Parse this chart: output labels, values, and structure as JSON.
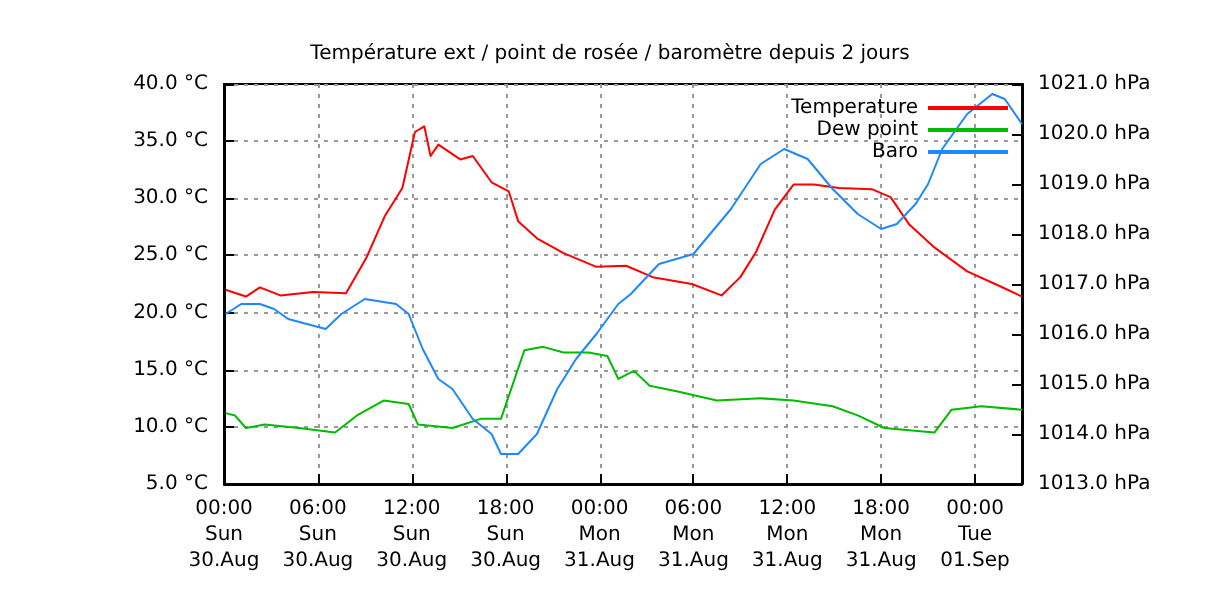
{
  "chart_data": {
    "type": "line",
    "title": "Température ext / point de rosée / baromètre depuis 2 jours",
    "xlim": [
      "--08-30T00:00",
      "--09-01T03:00"
    ],
    "xticks": [
      {
        "value": "--08-30T00:00",
        "label": "00:00\nSun\n30.Aug"
      },
      {
        "value": "--08-30T06:00",
        "label": "06:00\nSun\n30.Aug"
      },
      {
        "value": "--08-30T12:00",
        "label": "12:00\nSun\n30.Aug"
      },
      {
        "value": "--08-30T18:00",
        "label": "18:00\nSun\n30.Aug"
      },
      {
        "value": "--08-31T00:00",
        "label": "00:00\nMon\n31.Aug"
      },
      {
        "value": "--08-31T06:00",
        "label": "06:00\nMon\n31.Aug"
      },
      {
        "value": "--08-31T12:00",
        "label": "12:00\nMon\n31.Aug"
      },
      {
        "value": "--08-31T18:00",
        "label": "18:00\nMon\n31.Aug"
      },
      {
        "value": "--09-01T00:00",
        "label": "00:00\nTue\n01.Sep"
      }
    ],
    "ylim": [
      5,
      40
    ],
    "yticks": [
      {
        "value": 5,
        "label": "5.0 °C"
      },
      {
        "value": 10,
        "label": "10.0 °C"
      },
      {
        "value": 15,
        "label": "15.0 °C"
      },
      {
        "value": 20,
        "label": "20.0 °C"
      },
      {
        "value": 25,
        "label": "25.0 °C"
      },
      {
        "value": 30,
        "label": "30.0 °C"
      },
      {
        "value": 35,
        "label": "35.0 °C"
      },
      {
        "value": 40,
        "label": "40.0 °C"
      }
    ],
    "y2lim": [
      1013,
      1021
    ],
    "y2ticks": [
      {
        "value": 1013,
        "label": "1013.0 hPa"
      },
      {
        "value": 1014,
        "label": "1014.0 hPa"
      },
      {
        "value": 1015,
        "label": "1015.0 hPa"
      },
      {
        "value": 1016,
        "label": "1016.0 hPa"
      },
      {
        "value": 1017,
        "label": "1017.0 hPa"
      },
      {
        "value": 1018,
        "label": "1018.0 hPa"
      },
      {
        "value": 1019,
        "label": "1019.0 hPa"
      },
      {
        "value": 1020,
        "label": "1020.0 hPa"
      },
      {
        "value": 1021,
        "label": "1021.0 hPa"
      }
    ],
    "grid": true,
    "legend": "top right",
    "marker": "none",
    "line_style": "solid",
    "series": [
      {
        "name": "Temperature",
        "color": "#ff0000",
        "x": [
          "--08-30T00:06",
          "--08-30T01:24",
          "--08-30T02:18",
          "--08-30T03:36",
          "--08-30T05:42",
          "--08-30T07:48",
          "--08-30T09:06",
          "--08-30T10:18",
          "--08-30T11:24",
          "--08-30T12:12",
          "--08-30T12:48",
          "--08-30T13:12",
          "--08-30T13:42",
          "--08-30T15:06",
          "--08-30T15:54",
          "--08-30T17:06",
          "--08-30T18:12",
          "--08-30T18:48",
          "--08-30T20:00",
          "--08-30T21:42",
          "--08-30T23:48",
          "--08-31T01:42",
          "--08-31T03:24",
          "--08-31T05:54",
          "--08-31T07:48",
          "--08-31T09:00",
          "--08-31T10:00",
          "--08-31T11:12",
          "--08-31T12:24",
          "--08-31T13:42",
          "--08-31T15:18",
          "--08-31T17:24",
          "--08-31T18:36",
          "--08-31T19:48",
          "--08-31T21:24",
          "--08-31T23:30",
          "--09-01T01:36",
          "--09-01T03:00"
        ],
        "values": [
          22.0,
          21.4,
          22.2,
          21.5,
          21.8,
          21.7,
          24.8,
          28.5,
          30.9,
          35.8,
          36.3,
          33.7,
          34.7,
          33.4,
          33.7,
          31.4,
          30.6,
          28.0,
          26.5,
          25.2,
          24.0,
          24.1,
          23.1,
          22.5,
          21.5,
          23.1,
          25.3,
          29.0,
          31.2,
          31.2,
          30.9,
          30.8,
          30.1,
          27.7,
          25.7,
          23.6,
          22.3,
          21.4
        ]
      },
      {
        "name": "Dew point",
        "color": "#00bb00",
        "x": [
          "--08-30T00:06",
          "--08-30T00:42",
          "--08-30T01:24",
          "--08-30T02:36",
          "--08-30T04:48",
          "--08-30T07:06",
          "--08-30T08:30",
          "--08-30T10:12",
          "--08-30T11:48",
          "--08-30T12:24",
          "--08-30T14:36",
          "--08-30T16:24",
          "--08-30T17:42",
          "--08-30T18:18",
          "--08-30T19:12",
          "--08-30T20:24",
          "--08-30T21:42",
          "--08-30T23:18",
          "--08-31T00:30",
          "--08-31T01:12",
          "--08-31T02:12",
          "--08-31T03:12",
          "--08-31T05:00",
          "--08-31T07:30",
          "--08-31T10:18",
          "--08-31T12:24",
          "--08-31T14:54",
          "--08-31T16:30",
          "--08-31T18:12",
          "--08-31T21:24",
          "--08-31T22:30",
          "--09-01T00:24",
          "--09-01T03:00"
        ],
        "values": [
          11.2,
          11.0,
          9.9,
          10.2,
          9.9,
          9.5,
          11.0,
          12.3,
          12.0,
          10.2,
          9.9,
          10.7,
          10.7,
          13.1,
          16.7,
          17.0,
          16.5,
          16.5,
          16.2,
          14.2,
          14.9,
          13.6,
          13.1,
          12.3,
          12.5,
          12.3,
          11.8,
          11.0,
          9.9,
          9.5,
          11.5,
          11.8,
          11.5
        ]
      },
      {
        "name": "Baro",
        "color": "#1e88ff",
        "axis": "y2",
        "x": [
          "--08-30T00:06",
          "--08-30T01:06",
          "--08-30T02:18",
          "--08-30T03:12",
          "--08-30T04:06",
          "--08-30T05:18",
          "--08-30T06:30",
          "--08-30T07:30",
          "--08-30T09:00",
          "--08-30T11:00",
          "--08-30T11:48",
          "--08-30T12:42",
          "--08-30T13:42",
          "--08-30T14:36",
          "--08-30T15:54",
          "--08-30T17:06",
          "--08-30T17:42",
          "--08-30T18:48",
          "--08-30T20:00",
          "--08-30T21:18",
          "--08-30T22:30",
          "--08-30T23:48",
          "--08-31T01:12",
          "--08-31T02:00",
          "--08-31T03:48",
          "--08-31T06:00",
          "--08-31T08:24",
          "--08-31T10:18",
          "--08-31T11:48",
          "--08-31T13:18",
          "--08-31T14:54",
          "--08-31T16:30",
          "--08-31T18:00",
          "--08-31T19:00",
          "--08-31T20:12",
          "--08-31T21:00",
          "--08-31T21:54",
          "--08-31T23:30",
          "--09-01T01:06",
          "--09-01T01:54",
          "--09-01T03:00"
        ],
        "values": [
          1016.4,
          1016.6,
          1016.6,
          1016.5,
          1016.3,
          1016.2,
          1016.1,
          1016.4,
          1016.7,
          1016.6,
          1016.4,
          1015.7,
          1015.1,
          1014.9,
          1014.3,
          1014.0,
          1013.6,
          1013.6,
          1014.0,
          1014.9,
          1015.5,
          1016.0,
          1016.6,
          1016.8,
          1017.4,
          1017.6,
          1018.5,
          1019.4,
          1019.7,
          1019.5,
          1018.9,
          1018.4,
          1018.1,
          1018.2,
          1018.6,
          1019.0,
          1019.7,
          1020.4,
          1020.8,
          1020.7,
          1020.2
        ]
      }
    ]
  }
}
